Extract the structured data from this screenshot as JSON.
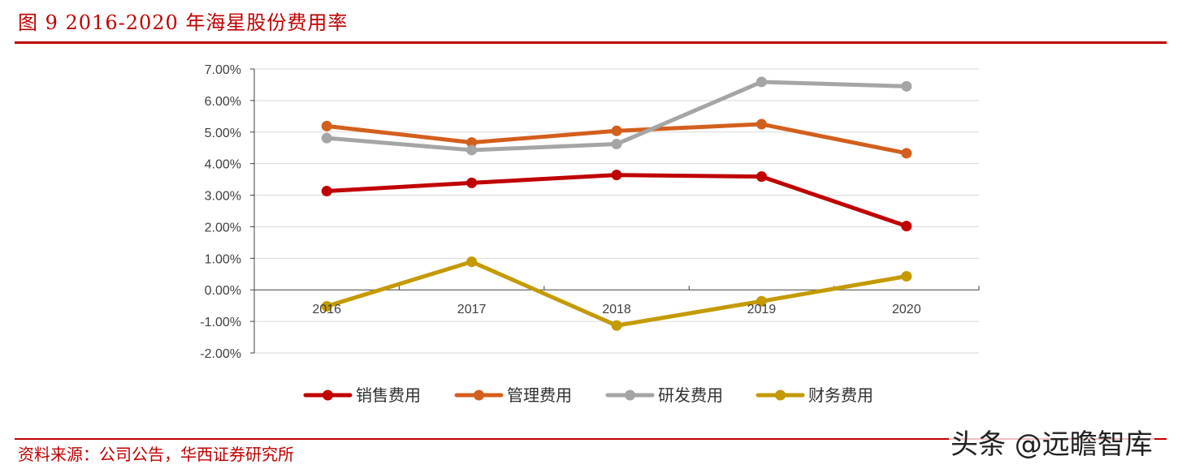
{
  "figure": {
    "title": "图 9 2016-2020 年海星股份费用率",
    "source": "资料来源：公司公告，华西证券研究所",
    "watermark": "头条 @远瞻智库"
  },
  "colors": {
    "accent": "#c00000",
    "grid": "#d9d9d9",
    "axis": "#404040"
  },
  "chart_data": {
    "type": "line",
    "title": "",
    "xlabel": "",
    "ylabel": "",
    "categories": [
      "2016",
      "2017",
      "2018",
      "2019",
      "2020"
    ],
    "ylim": [
      -0.02,
      0.07
    ],
    "yticks": [
      0.07,
      0.06,
      0.05,
      0.04,
      0.03,
      0.02,
      0.01,
      0.0,
      -0.01,
      -0.02
    ],
    "ytick_labels": [
      "7.00%",
      "6.00%",
      "5.00%",
      "4.00%",
      "3.00%",
      "2.00%",
      "1.00%",
      "0.00%",
      "-1.00%",
      "-2.00%"
    ],
    "grid": true,
    "legend_position": "bottom",
    "series": [
      {
        "name": "销售费用",
        "color": "#c00000",
        "values": [
          0.0313,
          0.0339,
          0.0364,
          0.0359,
          0.0202
        ]
      },
      {
        "name": "管理费用",
        "color": "#d35f1d",
        "values": [
          0.0519,
          0.0467,
          0.0504,
          0.0525,
          0.0433
        ]
      },
      {
        "name": "研发费用",
        "color": "#a5a5a5",
        "values": [
          0.0481,
          0.0443,
          0.0462,
          0.0659,
          0.0645
        ]
      },
      {
        "name": "财务费用",
        "color": "#c49a00",
        "values": [
          -0.0052,
          0.0089,
          -0.0113,
          -0.0036,
          0.0043
        ]
      }
    ]
  }
}
